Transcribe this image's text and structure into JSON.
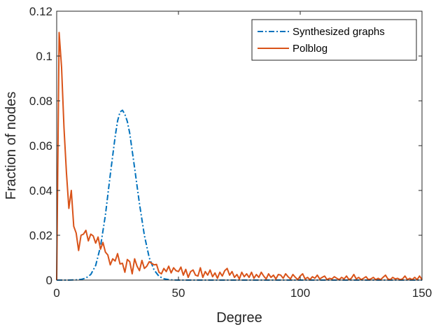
{
  "chart_data": {
    "type": "line",
    "title": "",
    "xlabel": "Degree",
    "ylabel": "Fraction of nodes",
    "xlim": [
      0,
      150
    ],
    "ylim": [
      0,
      0.12
    ],
    "xticks": [
      0,
      50,
      100,
      150
    ],
    "yticks": [
      0,
      0.02,
      0.04,
      0.06,
      0.08,
      0.1,
      0.12
    ],
    "xtick_labels": [
      "0",
      "50",
      "100",
      "150"
    ],
    "ytick_labels": [
      "0",
      "0.02",
      "0.04",
      "0.06",
      "0.08",
      "0.1",
      "0.12"
    ],
    "grid": false,
    "legend_position": "top-right",
    "series": [
      {
        "name": "Synthesized graphs",
        "color": "#0072BD",
        "style": "dash-dot",
        "x": [
          0,
          5,
          8,
          10,
          12,
          14,
          16,
          18,
          20,
          22,
          24,
          25,
          26,
          27,
          28,
          29,
          30,
          32,
          34,
          36,
          38,
          40,
          42,
          44,
          46,
          48,
          50,
          60,
          80,
          100,
          120,
          150
        ],
        "y": [
          0,
          0,
          0.0001,
          0.0003,
          0.0009,
          0.0025,
          0.0065,
          0.015,
          0.029,
          0.047,
          0.064,
          0.071,
          0.075,
          0.0758,
          0.074,
          0.0708,
          0.0655,
          0.05,
          0.034,
          0.02,
          0.01,
          0.0045,
          0.0017,
          0.0006,
          0.0002,
          5e-05,
          0,
          0,
          0,
          0,
          0,
          0
        ]
      },
      {
        "name": "Polblog",
        "color": "#D95319",
        "style": "solid",
        "x": [
          0,
          1,
          2,
          3,
          4,
          5,
          6,
          7,
          8,
          9,
          10,
          11,
          12,
          13,
          14,
          15,
          16,
          17,
          18,
          19,
          20,
          21,
          22,
          23,
          24,
          25,
          26,
          27,
          28,
          29,
          30,
          31,
          32,
          33,
          34,
          35,
          36,
          37,
          38,
          39,
          40,
          41,
          42,
          43,
          44,
          45,
          46,
          47,
          48,
          49,
          50,
          51,
          52,
          53,
          54,
          55,
          56,
          57,
          58,
          59,
          60,
          61,
          62,
          63,
          64,
          65,
          66,
          67,
          68,
          69,
          70,
          71,
          72,
          73,
          74,
          75,
          76,
          77,
          78,
          79,
          80,
          81,
          82,
          83,
          84,
          85,
          86,
          87,
          88,
          89,
          90,
          91,
          92,
          93,
          94,
          95,
          96,
          97,
          98,
          99,
          100,
          101,
          102,
          103,
          104,
          105,
          106,
          107,
          108,
          109,
          110,
          111,
          112,
          113,
          114,
          115,
          116,
          117,
          118,
          119,
          120,
          121,
          122,
          123,
          124,
          125,
          126,
          127,
          128,
          129,
          130,
          131,
          132,
          133,
          134,
          135,
          136,
          137,
          138,
          139,
          140,
          141,
          142,
          143,
          144,
          145,
          146,
          147,
          148,
          149,
          150
        ],
        "y": [
          0.0,
          0.1105,
          0.095,
          0.068,
          0.048,
          0.032,
          0.04,
          0.024,
          0.021,
          0.0132,
          0.02,
          0.0205,
          0.0222,
          0.0175,
          0.0205,
          0.0197,
          0.0165,
          0.0192,
          0.0138,
          0.0168,
          0.0125,
          0.0112,
          0.0068,
          0.0095,
          0.0085,
          0.0118,
          0.0072,
          0.0075,
          0.0035,
          0.0092,
          0.0082,
          0.0028,
          0.0095,
          0.0062,
          0.0042,
          0.0088,
          0.0052,
          0.0062,
          0.0082,
          0.0075,
          0.0068,
          0.007,
          0.0035,
          0.0028,
          0.0052,
          0.0038,
          0.0062,
          0.0032,
          0.0055,
          0.0042,
          0.0038,
          0.0058,
          0.0022,
          0.0048,
          0.0012,
          0.0038,
          0.0045,
          0.0022,
          0.0018,
          0.0055,
          0.0012,
          0.0038,
          0.0022,
          0.0045,
          0.0015,
          0.0032,
          0.0008,
          0.0035,
          0.0018,
          0.0042,
          0.0052,
          0.0022,
          0.0038,
          0.0012,
          0.0025,
          0.0005,
          0.0035,
          0.0015,
          0.0028,
          0.0012,
          0.0035,
          0.0008,
          0.0025,
          0.0012,
          0.0035,
          0.0018,
          0.0005,
          0.0028,
          0.0012,
          0.0022,
          0.0005,
          0.0025,
          0.0022,
          0.0008,
          0.0028,
          0.0015,
          0.0005,
          0.0025,
          0.0012,
          0.0002,
          0.0018,
          0.0028,
          0.0005,
          0.0012,
          0.0002,
          0.0015,
          0.0008,
          0.0022,
          0.0005,
          0.0012,
          0.0018,
          0.0002,
          0.0008,
          0.0005,
          0.0015,
          0.0008,
          0.0002,
          0.0012,
          0.0005,
          0.0018,
          0.0002,
          0.0008,
          0.0025,
          0.0005,
          0.0012,
          0.0002,
          0.0008,
          0.0015,
          0.0002,
          0.0005,
          0.0012,
          0.0002,
          0.0008,
          0.0002,
          0.0012,
          0.0022,
          0.0005,
          0.0002,
          0.0012,
          0.0005,
          0.0008,
          0.0002,
          0.0005,
          0.0018,
          0.0002,
          0.0008,
          0.0002,
          0.0012,
          0.0002,
          0.0018,
          0.0002
        ]
      }
    ]
  }
}
